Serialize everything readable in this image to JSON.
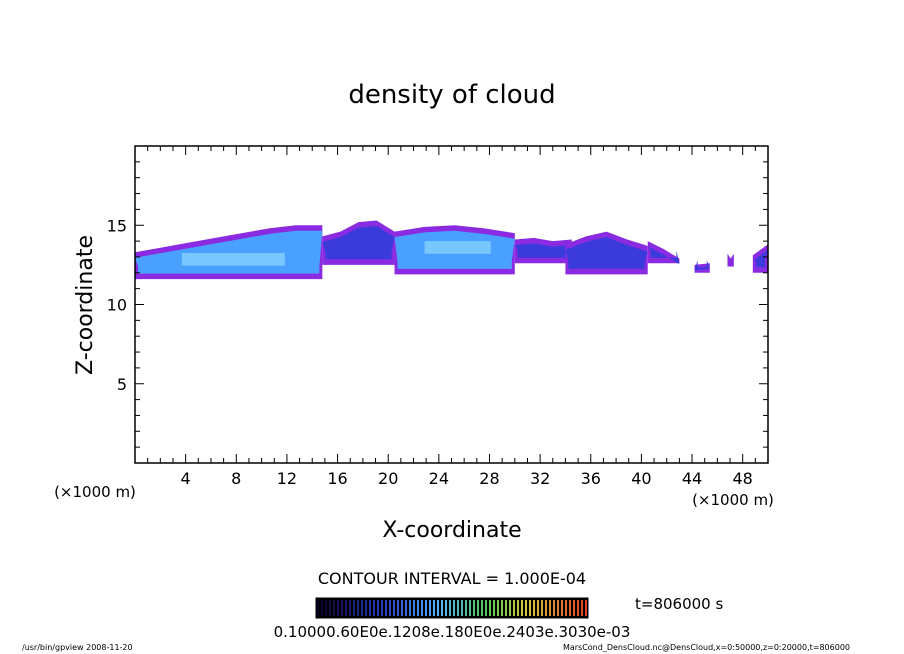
{
  "chart_data": {
    "type": "heatmap",
    "title": "density of cloud",
    "xlabel": "X-coordinate",
    "ylabel": "Z-coordinate",
    "x_unit_label": "(×1000 m)",
    "x_unit_label_right": "(×1000 m)",
    "xlim": [
      0,
      50
    ],
    "ylim": [
      0,
      20
    ],
    "x_ticks": [
      4,
      8,
      12,
      16,
      20,
      24,
      28,
      32,
      36,
      40,
      44,
      48
    ],
    "x_tick_labels": [
      "4",
      "8",
      "12",
      "16",
      "20",
      "24",
      "28",
      "32",
      "36",
      "40",
      "44",
      "48"
    ],
    "y_ticks": [
      5,
      10,
      15
    ],
    "y_tick_labels": [
      "5",
      "10",
      "15"
    ],
    "contour_interval_text": "CONTOUR INTERVAL = 1.000E-04",
    "time_label": "t=806000 s",
    "colorbar_labels_text": "0.10000.60E0e.1208e.180E0e.2403e.3030e-03",
    "colors": {
      "low": "#8a2be2",
      "mid": "#3b3bdc",
      "high": "#4aa0ff",
      "core": "#9fe8ff"
    },
    "cloud_regions": [
      {
        "x": [
          0,
          14.8
        ],
        "z_bottom": 11.6,
        "z_top": [
          13.3,
          13.6,
          13.9,
          14.2,
          14.5,
          14.8,
          15.0,
          15.0
        ],
        "intensity": "high"
      },
      {
        "x": [
          14.8,
          20.5
        ],
        "z_bottom": 12.5,
        "z_top": [
          14.3,
          14.6,
          15.2,
          15.3,
          14.6
        ],
        "intensity": "mid"
      },
      {
        "x": [
          20.5,
          30.0
        ],
        "z_bottom": 11.9,
        "z_top": [
          14.6,
          14.9,
          15.0,
          14.8,
          14.5
        ],
        "intensity": "high"
      },
      {
        "x": [
          30.0,
          34.5
        ],
        "z_bottom": 12.6,
        "z_top": [
          14.1,
          14.2,
          14.0,
          14.1
        ],
        "intensity": "low"
      },
      {
        "x": [
          34.0,
          40.5
        ],
        "z_bottom": 11.9,
        "z_top": [
          13.8,
          14.3,
          14.6,
          14.1,
          13.7
        ],
        "intensity": "mid"
      },
      {
        "x": [
          40.5,
          43.0
        ],
        "z_bottom": 12.6,
        "z_top": [
          14.0,
          13.5,
          12.9
        ],
        "intensity": "low"
      },
      {
        "x": [
          44.2,
          45.4
        ],
        "z_bottom": 12.0,
        "z_top": [
          12.5,
          12.6
        ],
        "intensity": "low"
      },
      {
        "x": [
          46.8,
          47.3
        ],
        "z_bottom": 12.4,
        "z_top": [
          12.9
        ],
        "intensity": "low"
      },
      {
        "x": [
          48.8,
          50.0
        ],
        "z_bottom": 12.0,
        "z_top": [
          13.1,
          13.8
        ],
        "intensity": "mid"
      }
    ]
  },
  "footer": {
    "program": "/usr/bin/gpview   2008-11-20",
    "source": "MarsCond_DensCloud.nc@DensCloud,x=0:50000,z=0:20000,t=806000"
  }
}
